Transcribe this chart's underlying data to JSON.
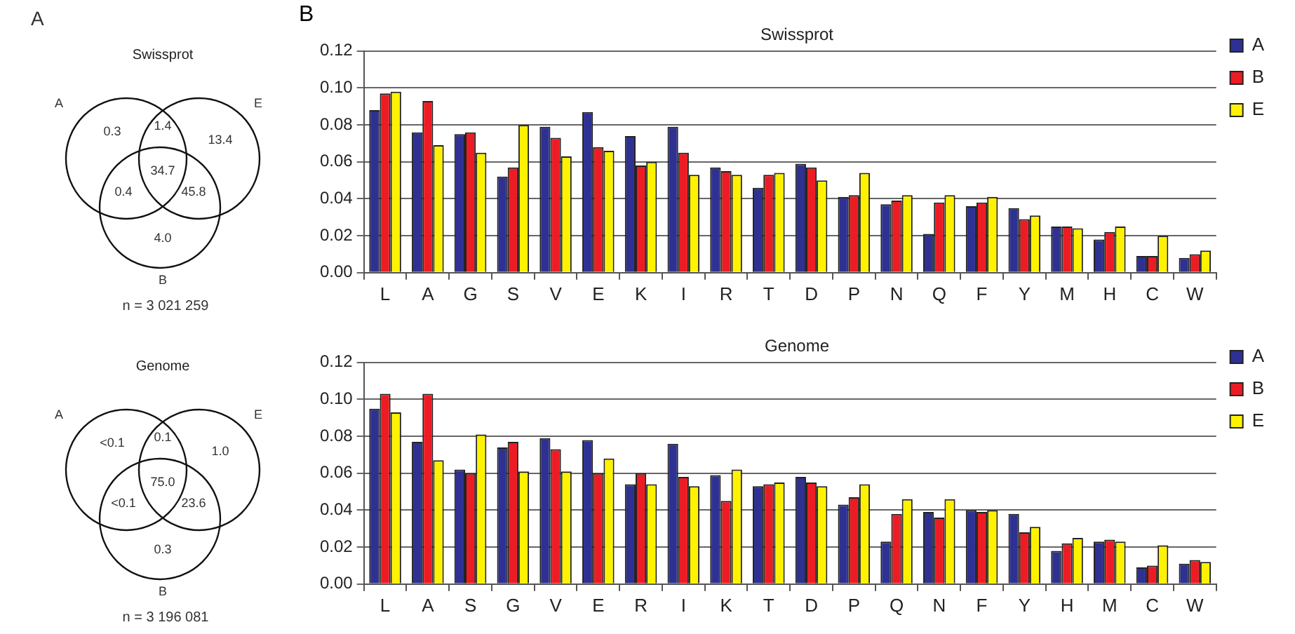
{
  "chart_data": [
    {
      "type": "other",
      "title": "Swissprot",
      "annotations": [
        "A",
        "0.3",
        "1.4",
        "13.4",
        "34.7",
        "0.4",
        "45.8",
        "4.0",
        "A",
        "E",
        "B",
        "n = 3 021 259"
      ]
    },
    {
      "type": "other",
      "title": "Genome",
      "annotations": [
        "<0.1",
        "0.1",
        "1.0",
        "75.0",
        "<0.1",
        "23.6",
        "0.3",
        "A",
        "E",
        "B",
        "n = 3 196 081"
      ]
    },
    {
      "type": "bar",
      "title": "Swissprot",
      "annotations": [
        "B"
      ],
      "categories": [
        "L",
        "A",
        "G",
        "S",
        "V",
        "E",
        "K",
        "I",
        "R",
        "T",
        "D",
        "P",
        "N",
        "Q",
        "F",
        "Y",
        "M",
        "H",
        "C",
        "W"
      ],
      "series": [
        {
          "name": "A",
          "color": "#2e3192",
          "values": [
            0.088,
            0.076,
            0.075,
            0.052,
            0.079,
            0.087,
            0.074,
            0.079,
            0.057,
            0.046,
            0.059,
            0.041,
            0.037,
            0.021,
            0.036,
            0.035,
            0.025,
            0.018,
            0.009,
            0.008
          ]
        },
        {
          "name": "B",
          "color": "#ed1c24",
          "values": [
            0.097,
            0.093,
            0.076,
            0.057,
            0.073,
            0.068,
            0.058,
            0.065,
            0.055,
            0.053,
            0.057,
            0.042,
            0.039,
            0.038,
            0.038,
            0.029,
            0.025,
            0.022,
            0.009,
            0.01
          ]
        },
        {
          "name": "E",
          "color": "#fff200",
          "values": [
            0.098,
            0.069,
            0.065,
            0.08,
            0.063,
            0.066,
            0.06,
            0.053,
            0.053,
            0.054,
            0.05,
            0.054,
            0.042,
            0.042,
            0.041,
            0.031,
            0.024,
            0.025,
            0.02,
            0.012
          ]
        }
      ],
      "ylim": [
        0,
        0.12
      ],
      "yticks": [
        {
          "value": 0,
          "label": "0.00"
        },
        {
          "value": 0.02,
          "label": "0.02"
        },
        {
          "value": 0.04,
          "label": "0.04"
        },
        {
          "value": 0.06,
          "label": "0.06"
        },
        {
          "value": 0.08,
          "label": "0.08"
        },
        {
          "value": 0.1,
          "label": "0.10"
        },
        {
          "value": 0.12,
          "label": "0.12"
        }
      ],
      "grid": "y",
      "legend": "right"
    },
    {
      "type": "bar",
      "title": "Genome",
      "categories": [
        "L",
        "A",
        "S",
        "G",
        "V",
        "E",
        "R",
        "I",
        "K",
        "T",
        "D",
        "P",
        "Q",
        "N",
        "F",
        "Y",
        "H",
        "M",
        "C",
        "W"
      ],
      "series": [
        {
          "name": "A",
          "color": "#2e3192",
          "values": [
            0.095,
            0.077,
            0.062,
            0.074,
            0.079,
            0.078,
            0.054,
            0.076,
            0.059,
            0.053,
            0.058,
            0.043,
            0.023,
            0.039,
            0.04,
            0.038,
            0.018,
            0.023,
            0.009,
            0.011
          ]
        },
        {
          "name": "B",
          "color": "#ed1c24",
          "values": [
            0.103,
            0.103,
            0.06,
            0.077,
            0.073,
            0.06,
            0.06,
            0.058,
            0.045,
            0.054,
            0.055,
            0.047,
            0.038,
            0.036,
            0.039,
            0.028,
            0.022,
            0.024,
            0.01,
            0.013
          ]
        },
        {
          "name": "E",
          "color": "#fff200",
          "values": [
            0.093,
            0.067,
            0.081,
            0.061,
            0.061,
            0.068,
            0.054,
            0.053,
            0.062,
            0.055,
            0.053,
            0.054,
            0.046,
            0.046,
            0.04,
            0.031,
            0.025,
            0.023,
            0.021,
            0.012
          ]
        }
      ],
      "ylim": [
        0,
        0.12
      ],
      "yticks": [
        {
          "value": 0,
          "label": "0.00"
        },
        {
          "value": 0.02,
          "label": "0.02"
        },
        {
          "value": 0.04,
          "label": "0.04"
        },
        {
          "value": 0.06,
          "label": "0.06"
        },
        {
          "value": 0.08,
          "label": "0.08"
        },
        {
          "value": 0.1,
          "label": "0.10"
        },
        {
          "value": 0.12,
          "label": "0.12"
        }
      ],
      "grid": "y",
      "legend": "right"
    }
  ]
}
